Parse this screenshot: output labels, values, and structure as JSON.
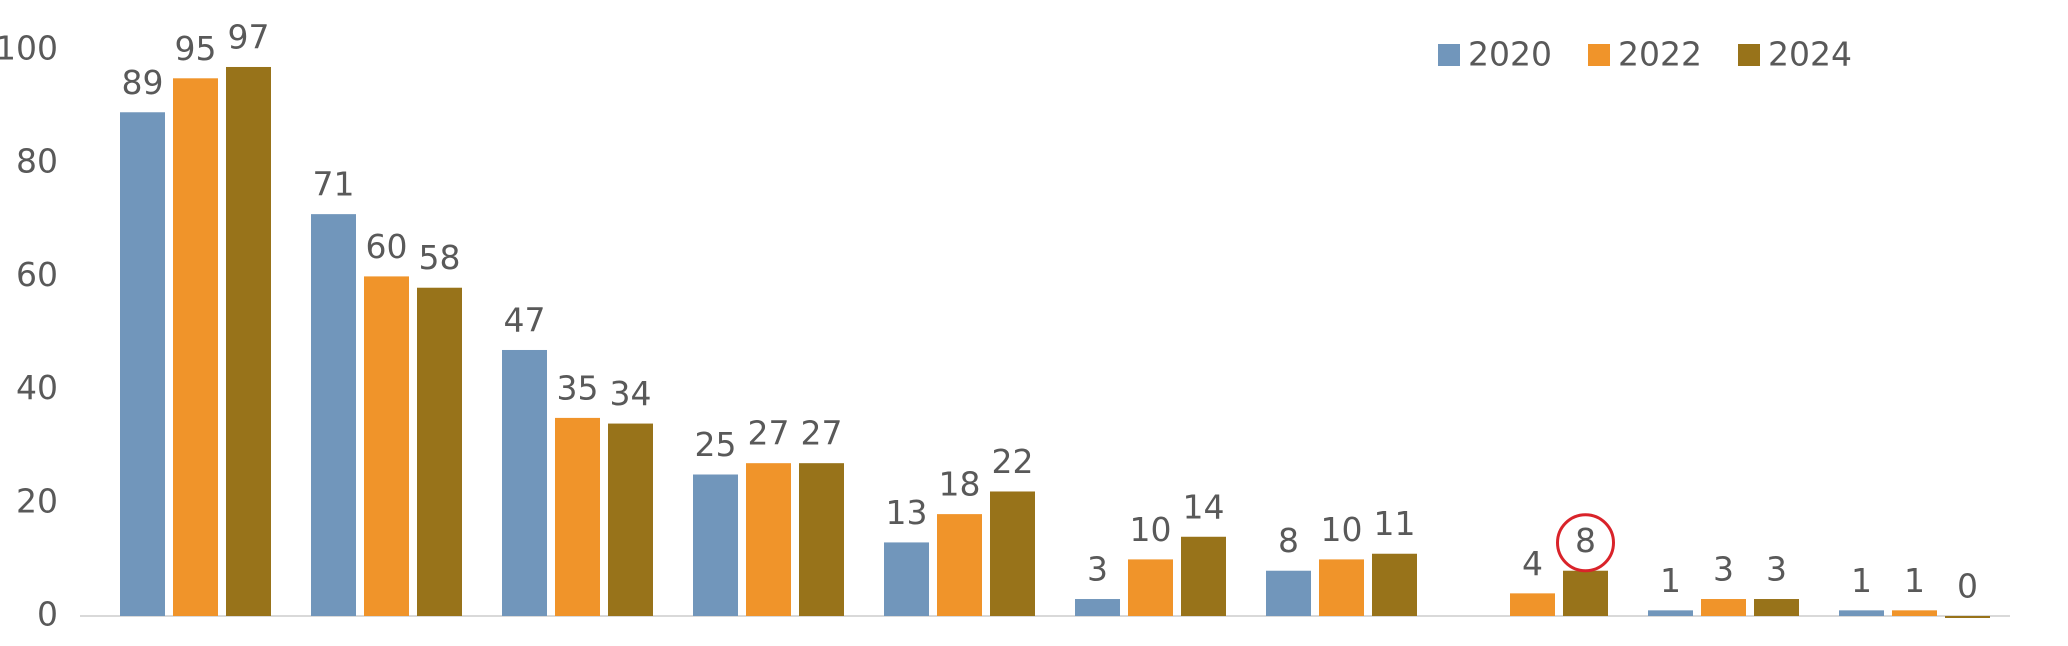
{
  "chart_data": {
    "type": "bar",
    "categories": [
      null,
      null,
      null,
      null,
      null,
      null,
      null,
      null,
      null,
      null
    ],
    "series": [
      {
        "name": "2020",
        "color": "#7196bb",
        "values": [
          89,
          71,
          47,
          25,
          13,
          3,
          8,
          null,
          1,
          1
        ]
      },
      {
        "name": "2022",
        "color": "#f0942a",
        "values": [
          95,
          60,
          35,
          27,
          18,
          10,
          10,
          4,
          3,
          1
        ]
      },
      {
        "name": "2024",
        "color": "#98731a",
        "values": [
          97,
          58,
          34,
          27,
          22,
          14,
          11,
          8,
          3,
          0
        ]
      }
    ],
    "ylim": [
      0,
      100
    ],
    "yticks": [
      0,
      20,
      40,
      60,
      80,
      100
    ],
    "grid": false,
    "legend": "top-right",
    "data_labels": true
  }
}
